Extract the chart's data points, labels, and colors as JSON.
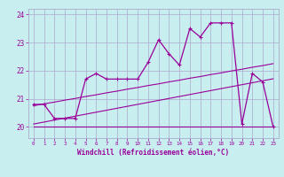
{
  "x": [
    0,
    1,
    2,
    3,
    4,
    5,
    6,
    7,
    8,
    9,
    10,
    11,
    12,
    13,
    14,
    15,
    16,
    17,
    18,
    19,
    20,
    21,
    22,
    23
  ],
  "y_main": [
    20.8,
    20.8,
    20.3,
    20.3,
    20.3,
    21.7,
    21.9,
    21.7,
    21.7,
    21.7,
    21.7,
    22.3,
    23.1,
    22.6,
    22.2,
    23.5,
    23.2,
    23.7,
    23.7,
    23.7,
    20.1,
    21.9,
    21.6,
    20.0
  ],
  "y_low": [
    20.0,
    20.0,
    20.0,
    20.0,
    20.0,
    20.0,
    20.0,
    20.0,
    20.0,
    20.0,
    20.0,
    20.0,
    20.0,
    20.0,
    20.0,
    20.0,
    20.0,
    20.0,
    20.0,
    20.0,
    20.0,
    20.0,
    20.0,
    20.0
  ],
  "y_trend1": [
    20.75,
    20.82,
    20.88,
    20.95,
    21.01,
    21.08,
    21.14,
    21.21,
    21.27,
    21.34,
    21.4,
    21.47,
    21.53,
    21.6,
    21.66,
    21.73,
    21.79,
    21.86,
    21.92,
    21.99,
    22.05,
    22.12,
    22.18,
    22.25
  ],
  "y_trend2": [
    20.1,
    20.17,
    20.24,
    20.31,
    20.38,
    20.45,
    20.52,
    20.59,
    20.66,
    20.73,
    20.8,
    20.87,
    20.94,
    21.01,
    21.08,
    21.15,
    21.22,
    21.29,
    21.36,
    21.43,
    21.5,
    21.57,
    21.64,
    21.71
  ],
  "color_main": "#990099",
  "color_low": "#990099",
  "color_trend": "#990099",
  "bg_color": "#c8eef0",
  "grid_color": "#aaaacc",
  "ylabel_vals": [
    20,
    21,
    22,
    23,
    24
  ],
  "ylim": [
    19.6,
    24.2
  ],
  "xlim": [
    -0.5,
    23.5
  ],
  "xlabel": "Windchill (Refroidissement éolien,°C)",
  "tick_color": "#990099"
}
